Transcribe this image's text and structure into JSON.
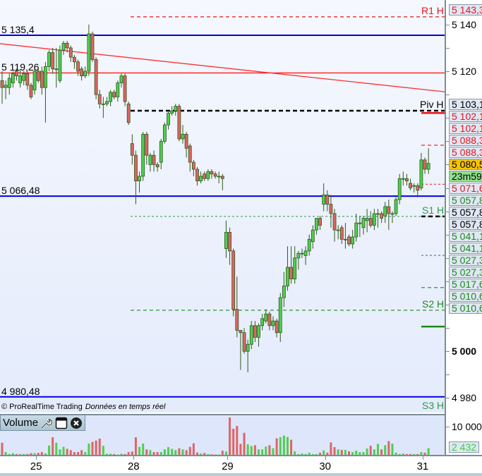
{
  "header": {
    "copyright": "© ProRealTime Trading",
    "realtime": "Données en temps réel"
  },
  "volume_panel": {
    "label": "Volume",
    "icons": [
      "wrench-icon",
      "window-icon",
      "close-icon"
    ]
  },
  "level_labels": [
    {
      "text": "5 135,4",
      "price": 5135.4,
      "color": "#0000e6"
    },
    {
      "text": "5 119,26",
      "price": 5119.26,
      "color": "#ff1a1a"
    },
    {
      "text": "5 066,48",
      "price": 5066.48,
      "color": "#0000e6"
    },
    {
      "text": "4 980,48",
      "price": 4980.48,
      "color": "#0000e6"
    }
  ],
  "trendline": {
    "start_price": 5131.8,
    "end_price": 5111.2,
    "color": "#ff3030"
  },
  "pivots": [
    {
      "label": "R1 H",
      "price": 5143.3,
      "color": "#e8141b",
      "style": "dash"
    },
    {
      "label": "Piv H",
      "price": 5103.1,
      "color": "#000000",
      "style": "dash-bold"
    },
    {
      "label": "S1 H",
      "price": 5057.8,
      "color": "#2a9a4a",
      "style": "dash-thin"
    },
    {
      "label": "S2 H",
      "price": 5017.6,
      "color": "#1a8a1a",
      "style": "dash"
    },
    {
      "label": "S3 H",
      "price": 4974,
      "color": "#2a9a4a",
      "style": "none"
    }
  ],
  "day31_levels": [
    {
      "price": 5102.1,
      "color": "#e8141b",
      "style": "solid"
    },
    {
      "price": 5088.3,
      "color": "#e8141b",
      "style": "dash"
    },
    {
      "price": 5071.6,
      "color": "#e8141b",
      "style": "dash-thin"
    },
    {
      "price": 5057.8,
      "color": "#000000",
      "style": "dash-bold"
    },
    {
      "price": 5041.1,
      "color": "#1a8a1a",
      "style": "dash-thin"
    },
    {
      "price": 5027.3,
      "color": "#1a8a1a",
      "style": "dash"
    },
    {
      "price": 5010.6,
      "color": "#1a8a1a",
      "style": "solid"
    }
  ],
  "axis": {
    "price_ticks": [
      {
        "text": "5 140",
        "price": 5140,
        "bold": false
      },
      {
        "text": "5 120",
        "price": 5120,
        "bold": false
      },
      {
        "text": "5 000",
        "price": 5000,
        "bold": true
      },
      {
        "text": "4 980",
        "price": 4980,
        "bold": false
      }
    ],
    "volume_tick": "10 000",
    "price_tags": [
      {
        "text": "5 143,3",
        "color": "#e8141b",
        "bg": "#dfe7f3"
      },
      {
        "text": "5 103,1",
        "color": "#000000",
        "bg": "#dfe7f3"
      },
      {
        "text": "5 102,1",
        "color": "#e8141b",
        "bg": "#dfe7f3"
      },
      {
        "text": "5 102,1",
        "color": "#e8141b",
        "bg": "#dfe7f3"
      },
      {
        "text": "5 088,3",
        "color": "#e8141b",
        "bg": "#dfe7f3"
      },
      {
        "text": "5 088,3",
        "color": "#e8141b",
        "bg": "#dfe7f3"
      },
      {
        "text": "5 080,5",
        "color": "#000000",
        "bg": "#f5c400"
      },
      {
        "text": "23m59",
        "color": "#000000",
        "bg": "#8fe08a"
      },
      {
        "text": "5 071,6",
        "color": "#e8141b",
        "bg": "#dfe7f3"
      },
      {
        "text": "5 057,8",
        "color": "#1a8a1a",
        "bg": "#dfe7f3"
      },
      {
        "text": "5 057,8",
        "color": "#000000",
        "bg": "#dfe7f3"
      },
      {
        "text": "5 057,8",
        "color": "#000000",
        "bg": "#dfe7f3"
      },
      {
        "text": "5 041,1",
        "color": "#1a8a1a",
        "bg": "#dfe7f3"
      },
      {
        "text": "5 041,1",
        "color": "#1a8a1a",
        "bg": "#dfe7f3"
      },
      {
        "text": "5 027,3",
        "color": "#1a8a1a",
        "bg": "#dfe7f3"
      },
      {
        "text": "5 027,3",
        "color": "#1a8a1a",
        "bg": "#dfe7f3"
      },
      {
        "text": "5 017,6",
        "color": "#1a8a1a",
        "bg": "#dfe7f3"
      },
      {
        "text": "5 010,6",
        "color": "#1a8a1a",
        "bg": "#dfe7f3"
      },
      {
        "text": "5 010,6",
        "color": "#1a8a1a",
        "bg": "#dfe7f3"
      }
    ],
    "volume_tag": {
      "text": "2 432",
      "color": "#3ccf3c",
      "bg": "#dfe7f3"
    }
  },
  "chart_data": {
    "type": "candlestick",
    "x_tick_labels": [
      {
        "text": "25",
        "index": 9
      },
      {
        "text": "28",
        "index": 36
      },
      {
        "text": "29",
        "index": 62
      },
      {
        "text": "30",
        "index": 89
      },
      {
        "text": "31",
        "index": 116
      }
    ],
    "ylim": [
      4974,
      5148
    ],
    "volume_ylim": [
      0,
      14000
    ],
    "up_color": "#4fcf4f",
    "down_color": "#e06464",
    "last_price": 5080.5,
    "last_volume": 2432,
    "candles": [
      [
        5116,
        5120,
        5106,
        5113
      ],
      [
        5113,
        5116,
        5108,
        5114
      ],
      [
        5113,
        5119,
        5110,
        5117
      ],
      [
        5115,
        5120,
        5113,
        5119
      ],
      [
        5120,
        5121,
        5116,
        5118
      ],
      [
        5115,
        5121,
        5113,
        5118
      ],
      [
        5116,
        5120,
        5114,
        5119
      ],
      [
        5119,
        5120,
        5112,
        5114
      ],
      [
        5114,
        5115,
        5108,
        5109
      ],
      [
        5112,
        5121,
        5110,
        5120
      ],
      [
        5120,
        5121,
        5115,
        5116
      ],
      [
        5120,
        5122,
        5110,
        5113
      ],
      [
        5113,
        5124,
        5098,
        5122
      ],
      [
        5122,
        5129,
        5120,
        5128
      ],
      [
        5128,
        5130,
        5119,
        5121
      ],
      [
        5121,
        5130,
        5113,
        5121
      ],
      [
        5116,
        5131,
        5115,
        5129
      ],
      [
        5129,
        5133,
        5127,
        5132
      ],
      [
        5132,
        5133,
        5128,
        5130
      ],
      [
        5130,
        5131,
        5124,
        5126
      ],
      [
        5126,
        5127,
        5121,
        5124
      ],
      [
        5124,
        5125,
        5118,
        5120
      ],
      [
        5121,
        5122,
        5116,
        5118
      ],
      [
        5118,
        5122,
        5117,
        5120
      ],
      [
        5120,
        5140,
        5118,
        5136
      ],
      [
        5136,
        5137,
        5124,
        5125
      ],
      [
        5125,
        5126,
        5108,
        5110
      ],
      [
        5110,
        5112,
        5104,
        5106
      ],
      [
        5106,
        5109,
        5100,
        5106
      ],
      [
        5106,
        5109,
        5105,
        5107
      ],
      [
        5107,
        5112,
        5105,
        5111
      ],
      [
        5111,
        5112,
        5108,
        5109
      ],
      [
        5109,
        5116,
        5107,
        5115
      ],
      [
        5115,
        5119,
        5113,
        5118
      ],
      [
        5118,
        5119,
        5105,
        5107
      ],
      [
        5106,
        5107,
        5097,
        5098
      ],
      [
        5089,
        5093,
        5080,
        5084
      ],
      [
        5084,
        5086,
        5063,
        5073
      ],
      [
        5073,
        5077,
        5068,
        5075
      ],
      [
        5075,
        5094,
        5073,
        5093
      ],
      [
        5093,
        5094,
        5080,
        5084
      ],
      [
        5080,
        5085,
        5077,
        5084
      ],
      [
        5084,
        5086,
        5077,
        5080
      ],
      [
        5080,
        5081,
        5077,
        5079
      ],
      [
        5081,
        5091,
        5078,
        5090
      ],
      [
        5090,
        5098,
        5089,
        5097
      ],
      [
        5097,
        5103,
        5095,
        5102
      ],
      [
        5102,
        5105,
        5101,
        5103
      ],
      [
        5103,
        5106,
        5101,
        5105
      ],
      [
        5105,
        5106,
        5090,
        5091
      ],
      [
        5091,
        5097,
        5089,
        5093
      ],
      [
        5093,
        5094,
        5083,
        5087
      ],
      [
        5088,
        5089,
        5077,
        5081
      ],
      [
        5081,
        5082,
        5075,
        5078
      ],
      [
        5078,
        5079,
        5071,
        5073
      ],
      [
        5073,
        5077,
        5072,
        5075
      ],
      [
        5076,
        5077,
        5073,
        5074
      ],
      [
        5074,
        5078,
        5073,
        5077
      ],
      [
        5077,
        5078,
        5074,
        5076
      ],
      [
        5076,
        5077,
        5074,
        5075
      ],
      [
        5075,
        5077,
        5072,
        5075
      ],
      [
        5075,
        5076,
        5069,
        5074
      ],
      [
        5044,
        5056,
        5040,
        5051
      ],
      [
        5051,
        5053,
        5037,
        5043
      ],
      [
        5043,
        5044,
        5015,
        5018
      ],
      [
        5018,
        5032,
        5006,
        5009
      ],
      [
        5009,
        5009,
        4992,
        5008
      ],
      [
        5008,
        5010,
        4999,
        5000
      ],
      [
        5000,
        5005,
        4991,
        5003
      ],
      [
        5003,
        5013,
        5001,
        5011
      ],
      [
        5011,
        5013,
        5004,
        5006
      ],
      [
        5006,
        5012,
        5002,
        5011
      ],
      [
        5011,
        5016,
        5009,
        5014
      ],
      [
        5013,
        5018,
        5012,
        5016
      ],
      [
        5016,
        5017,
        5009,
        5011
      ],
      [
        5011,
        5015,
        5009,
        5013
      ],
      [
        5013,
        5014,
        5006,
        5008
      ],
      [
        5008,
        5025,
        5004,
        5023
      ],
      [
        5023,
        5034,
        5019,
        5028
      ],
      [
        5028,
        5045,
        5026,
        5036
      ],
      [
        5036,
        5045,
        5029,
        5031
      ],
      [
        5031,
        5045,
        5029,
        5040
      ],
      [
        5040,
        5043,
        5035,
        5042
      ],
      [
        5042,
        5044,
        5040,
        5042
      ],
      [
        5041,
        5045,
        5037,
        5043
      ],
      [
        5043,
        5050,
        5041,
        5048
      ],
      [
        5047,
        5054,
        5044,
        5052
      ],
      [
        5052,
        5057,
        5050,
        5057
      ],
      [
        5057,
        5058,
        5052,
        5054
      ],
      [
        5063,
        5072,
        5060,
        5067
      ],
      [
        5067,
        5069,
        5060,
        5063
      ],
      [
        5063,
        5067,
        5053,
        5059
      ],
      [
        5059,
        5061,
        5047,
        5052
      ],
      [
        5052,
        5054,
        5048,
        5052
      ],
      [
        5053,
        5054,
        5046,
        5048
      ],
      [
        5048,
        5055,
        5044,
        5048
      ],
      [
        5049,
        5050,
        5045,
        5046
      ],
      [
        5046,
        5052,
        5044,
        5049
      ],
      [
        5049,
        5059,
        5047,
        5055
      ],
      [
        5055,
        5058,
        5049,
        5055
      ],
      [
        5053,
        5058,
        5050,
        5057
      ],
      [
        5056,
        5061,
        5051,
        5057
      ],
      [
        5057,
        5060,
        5053,
        5054
      ],
      [
        5054,
        5061,
        5052,
        5059
      ],
      [
        5059,
        5061,
        5053,
        5059
      ],
      [
        5059,
        5060,
        5055,
        5057
      ],
      [
        5058,
        5064,
        5055,
        5062
      ],
      [
        5062,
        5065,
        5052,
        5059
      ],
      [
        5059,
        5060,
        5055,
        5059
      ],
      [
        5059,
        5066,
        5058,
        5065
      ],
      [
        5065,
        5076,
        5063,
        5074
      ],
      [
        5074,
        5077,
        5071,
        5074
      ],
      [
        5074,
        5076,
        5071,
        5073
      ],
      [
        5072,
        5074,
        5069,
        5070
      ],
      [
        5071,
        5072,
        5068,
        5071
      ],
      [
        5071,
        5072,
        5066,
        5069
      ],
      [
        5070,
        5085,
        5069,
        5082
      ],
      [
        5082,
        5083,
        5076,
        5078
      ],
      [
        5078,
        5087,
        5076,
        5080.5
      ]
    ],
    "volume": [
      4400,
      1000,
      300,
      600,
      300,
      300,
      300,
      300,
      600,
      600,
      700,
      1000,
      500,
      3400,
      6400,
      4400,
      2000,
      2900,
      2200,
      1700,
      1000,
      1000,
      1700,
      1000,
      4100,
      4700,
      5200,
      5900,
      3300,
      400,
      400,
      300,
      100,
      400,
      300,
      1000,
      1200,
      6400,
      2900,
      4100,
      2000,
      1700,
      1000,
      1000,
      1000,
      2000,
      2800,
      2200,
      1700,
      2400,
      2000,
      1700,
      2900,
      4200,
      850,
      500,
      700,
      300,
      200,
      100,
      100,
      1500,
      1200,
      13600,
      9500,
      10500,
      4000,
      8000,
      3800,
      3200,
      3500,
      2000,
      2000,
      3000,
      3500,
      2400,
      6000,
      6400,
      7000,
      6500,
      5500,
      1300,
      300,
      500,
      300,
      800,
      300,
      300,
      800,
      1600,
      800,
      4500,
      2800,
      2000,
      1800,
      1800,
      1300,
      1000,
      1500,
      1000,
      1000,
      2300,
      3300,
      2000,
      4000,
      2000,
      3500,
      5000,
      4100,
      800,
      300,
      500,
      300,
      300,
      300,
      300,
      1000,
      800,
      2432
    ]
  }
}
